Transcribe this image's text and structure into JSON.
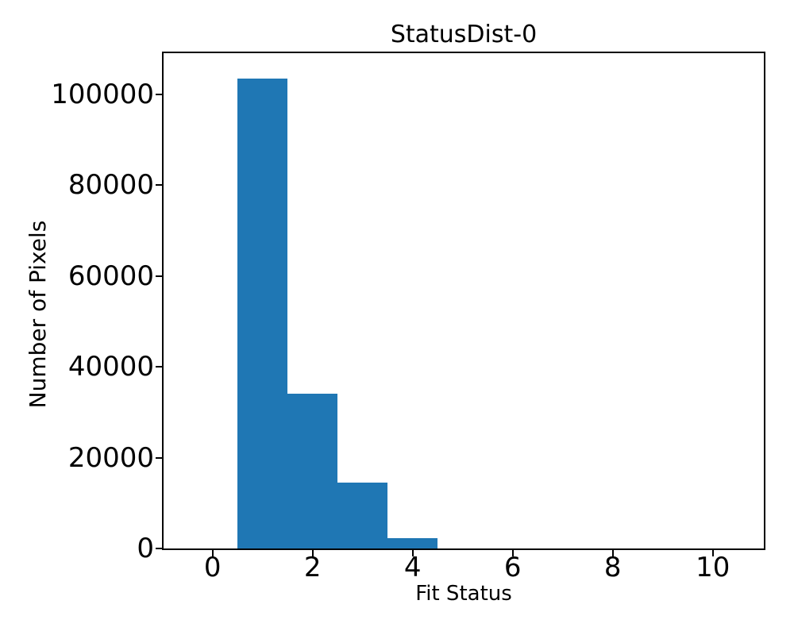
{
  "figure": {
    "background": "#ffffff"
  },
  "chart_data": {
    "type": "bar",
    "subtype": "histogram",
    "title": "StatusDist-0",
    "xlabel": "Fit Status",
    "ylabel": "Number of Pixels",
    "bar_color": "#1f77b4",
    "axis_color": "#000000",
    "text_color": "#000000",
    "grid": false,
    "legend": null,
    "bins": [
      {
        "x0": 0.5,
        "x1": 1.5,
        "center": 1,
        "count": 103500
      },
      {
        "x0": 1.5,
        "x1": 2.5,
        "center": 2,
        "count": 34000
      },
      {
        "x0": 2.5,
        "x1": 3.5,
        "center": 3,
        "count": 14500
      },
      {
        "x0": 3.5,
        "x1": 4.5,
        "center": 4,
        "count": 2300
      }
    ],
    "xticks": [
      0,
      2,
      4,
      6,
      8,
      10
    ],
    "yticks": [
      0,
      20000,
      40000,
      60000,
      80000,
      100000
    ],
    "xlim": [
      -0.98,
      11.02
    ],
    "ylim": [
      0,
      109000
    ]
  }
}
